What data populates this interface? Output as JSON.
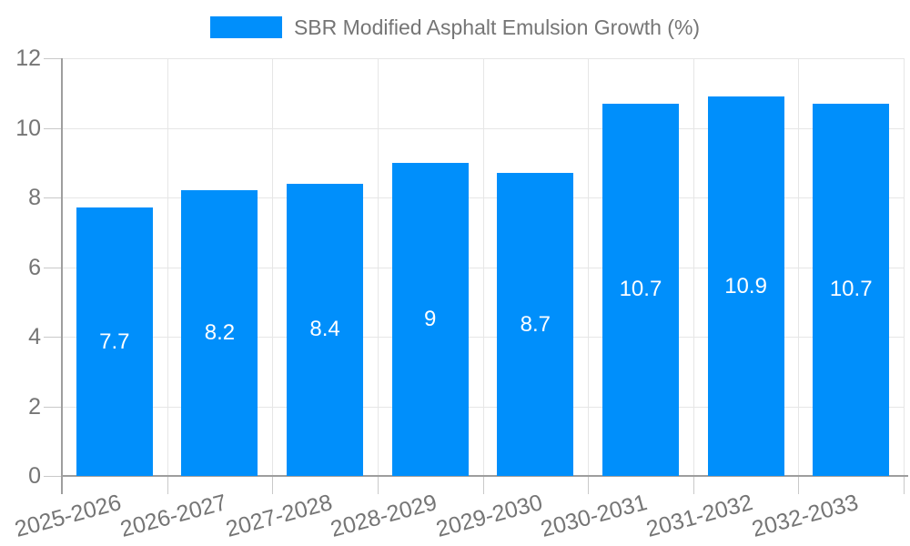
{
  "legend": {
    "label": "SBR Modified Asphalt Emulsion Growth (%)"
  },
  "chart_data": {
    "type": "bar",
    "title": "SBR Modified Asphalt Emulsion Growth (%)",
    "series_name": "SBR Modified Asphalt Emulsion Growth (%)",
    "categories": [
      "2025-2026",
      "2026-2027",
      "2027-2028",
      "2028-2029",
      "2029-2030",
      "2030-2031",
      "2031-2032",
      "2032-2033"
    ],
    "values": [
      7.7,
      8.2,
      8.4,
      9,
      8.7,
      10.7,
      10.9,
      10.7
    ],
    "data_labels": [
      "7.7",
      "8.2",
      "8.4",
      "9",
      "8.7",
      "10.7",
      "10.9",
      "10.7"
    ],
    "xlabel": "",
    "ylabel": "",
    "ylim": [
      0,
      12
    ],
    "yticks": [
      0,
      2,
      4,
      6,
      8,
      10,
      12
    ],
    "grid": "horizontal-and-vertical",
    "legend_position": "top-center",
    "x_label_rotation_deg": -15,
    "data_label_position": "center-of-bar",
    "colors": {
      "bar": "#008FFB",
      "axis_text": "#757575",
      "data_label_text": "#ffffff",
      "gridline": "#e6e6e6",
      "axis_line": "#9e9e9e",
      "tick": "#c9c9c9",
      "background": "#ffffff"
    }
  }
}
